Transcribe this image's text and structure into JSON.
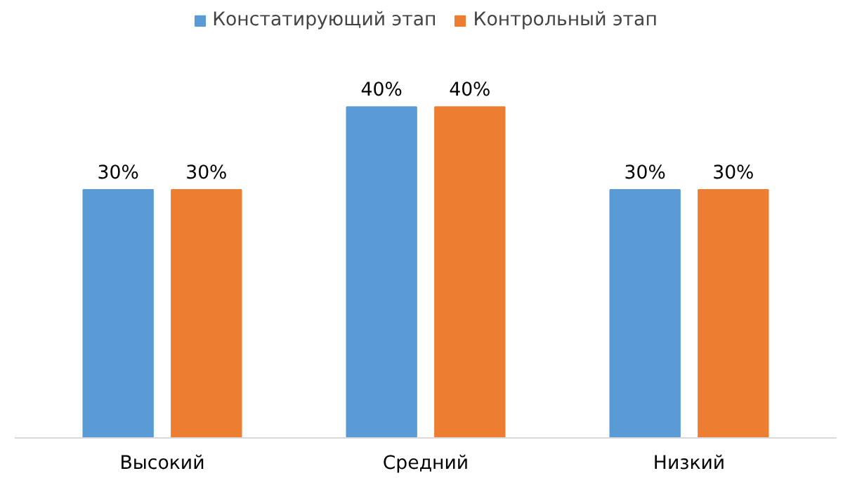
{
  "chart_data": {
    "type": "bar",
    "categories": [
      "Высокий",
      "Средний",
      "Низкий"
    ],
    "series": [
      {
        "name": "Констатирующий этап",
        "color": "#5b9bd5",
        "values": [
          30,
          40,
          30
        ],
        "value_labels": [
          "30%",
          "40%",
          "30%"
        ]
      },
      {
        "name": "Контрольный этап",
        "color": "#ed7d31",
        "values": [
          30,
          40,
          30
        ],
        "value_labels": [
          "30%",
          "40%",
          "30%"
        ]
      }
    ],
    "legend": "top"
  }
}
